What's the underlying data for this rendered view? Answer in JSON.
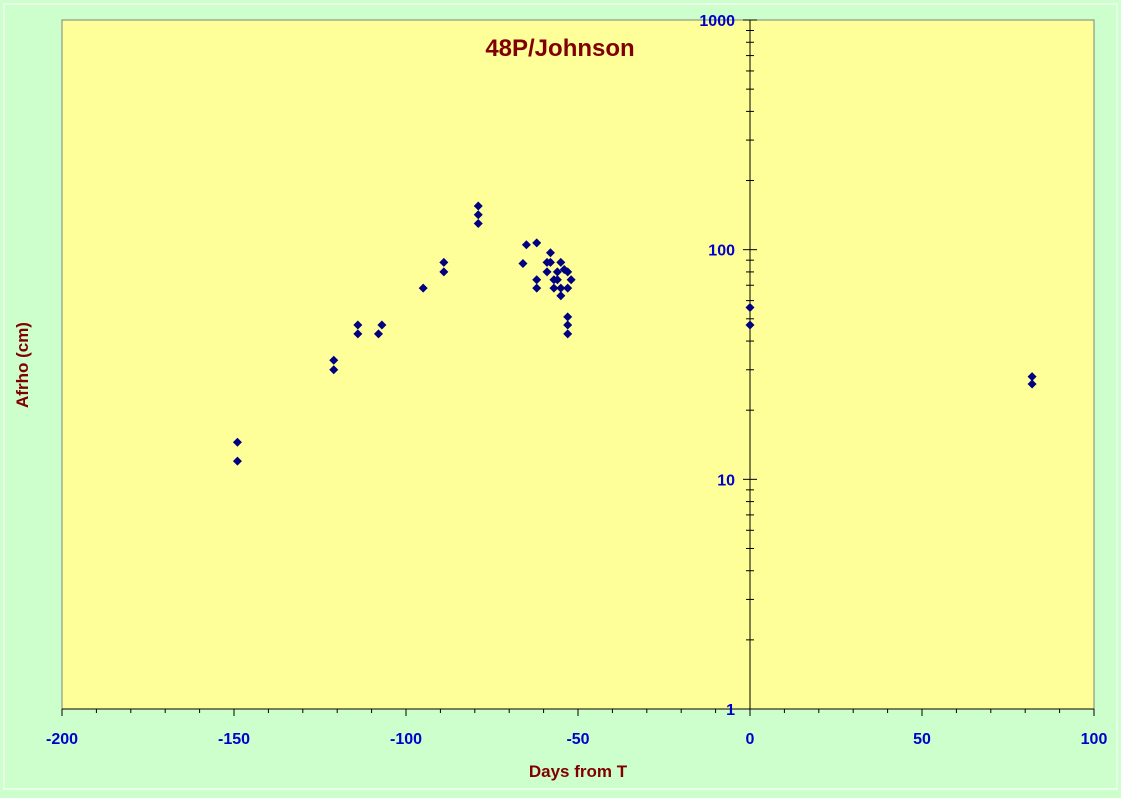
{
  "chart_data": {
    "type": "scatter",
    "title": "48P/Johnson",
    "xlabel": "Days from T",
    "ylabel": "Afrho (cm)",
    "xlim": [
      -200,
      100
    ],
    "ylim": [
      1,
      1000
    ],
    "y_scale": "log",
    "x_ticks": [
      -200,
      -150,
      -100,
      -50,
      0,
      50,
      100
    ],
    "y_ticks": [
      1,
      10,
      100,
      1000
    ],
    "grid": false,
    "legend": "none",
    "colors": {
      "background": "#ccffcc",
      "plot_area": "#ffff99",
      "title": "#800000",
      "axis_labels": "#800000",
      "tick_labels": "#0000cc",
      "marker": "#000080"
    },
    "series": [
      {
        "marker": "diamond",
        "points": [
          [
            -149,
            14.5
          ],
          [
            -149,
            12.0
          ],
          [
            -121,
            33.0
          ],
          [
            -121,
            30.0
          ],
          [
            -114,
            47.0
          ],
          [
            -114,
            43.0
          ],
          [
            -107,
            47.0
          ],
          [
            -108,
            43.0
          ],
          [
            -95,
            68.0
          ],
          [
            -89,
            88.0
          ],
          [
            -89,
            80.0
          ],
          [
            -79,
            155.0
          ],
          [
            -79,
            142.0
          ],
          [
            -79,
            130.0
          ],
          [
            -66,
            87.0
          ],
          [
            -65,
            105.0
          ],
          [
            -62,
            107.0
          ],
          [
            -62,
            74.0
          ],
          [
            -62,
            68.0
          ],
          [
            -59,
            88.0
          ],
          [
            -59,
            80.0
          ],
          [
            -58,
            97.0
          ],
          [
            -58,
            88.0
          ],
          [
            -57,
            74.0
          ],
          [
            -57,
            68.0
          ],
          [
            -56,
            80.0
          ],
          [
            -56,
            74.0
          ],
          [
            -55,
            88.0
          ],
          [
            -55,
            68.0
          ],
          [
            -55,
            63.0
          ],
          [
            -54,
            82.0
          ],
          [
            -53,
            80.0
          ],
          [
            -53,
            68.0
          ],
          [
            -53,
            51.0
          ],
          [
            -53,
            47.0
          ],
          [
            -53,
            43.0
          ],
          [
            -52,
            74.0
          ],
          [
            0,
            56.0
          ],
          [
            0,
            47.0
          ],
          [
            82,
            28.0
          ],
          [
            82,
            26.0
          ]
        ]
      }
    ]
  }
}
